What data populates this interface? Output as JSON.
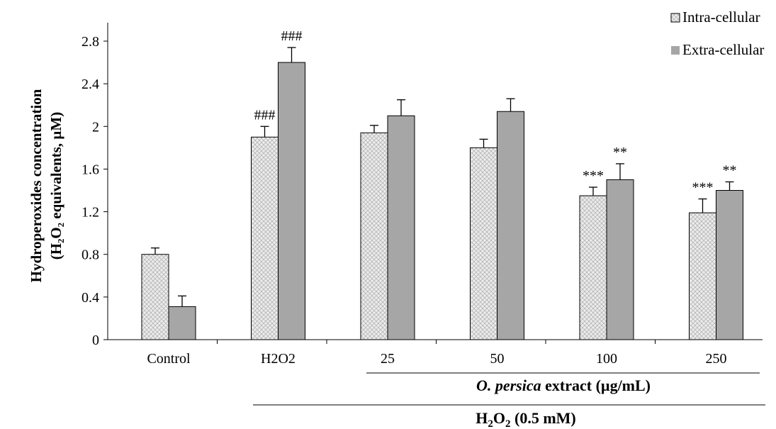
{
  "chart_data": {
    "type": "bar",
    "ylabel_line1": "Hydroperoxides  concentration",
    "ylabel_line2": "(H₂O₂  equivalents, µM)",
    "ylim": [
      0,
      2.8
    ],
    "yticks": [
      "0",
      "0.4",
      "0.8",
      "1.2",
      "1.6",
      "2",
      "2.4",
      "2.8"
    ],
    "ytick_values": [
      0,
      0.4,
      0.8,
      1.2,
      1.6,
      2.0,
      2.4,
      2.8
    ],
    "categories": [
      "Control",
      "H2O2",
      "25",
      "50",
      "100",
      "250"
    ],
    "series": [
      {
        "name": "Intra-cellular",
        "values": [
          0.8,
          1.9,
          1.94,
          1.8,
          1.35,
          1.19
        ],
        "errors": [
          0.06,
          0.1,
          0.07,
          0.08,
          0.08,
          0.13
        ],
        "annotations": [
          "",
          "###",
          "",
          "",
          "***",
          "***"
        ],
        "color": "#e6e6e6",
        "pattern": "crosshatch"
      },
      {
        "name": "Extra-cellular",
        "values": [
          0.31,
          2.6,
          2.1,
          2.14,
          1.5,
          1.4
        ],
        "errors": [
          0.1,
          0.14,
          0.15,
          0.12,
          0.15,
          0.08
        ],
        "annotations": [
          "",
          "###",
          "",
          "",
          "**",
          "**"
        ],
        "color": "#a6a6a6",
        "pattern": "solid"
      }
    ],
    "group_labels": {
      "extract": {
        "prefix": "O. persica",
        "suffix": " extract (µg/mL)"
      },
      "treatment": {
        "main": "H",
        "sub1": "2",
        "mid": "O",
        "sub2": "2",
        "tail": " (0.5 mM)"
      }
    },
    "legend_position": "top-right",
    "grid": false
  }
}
